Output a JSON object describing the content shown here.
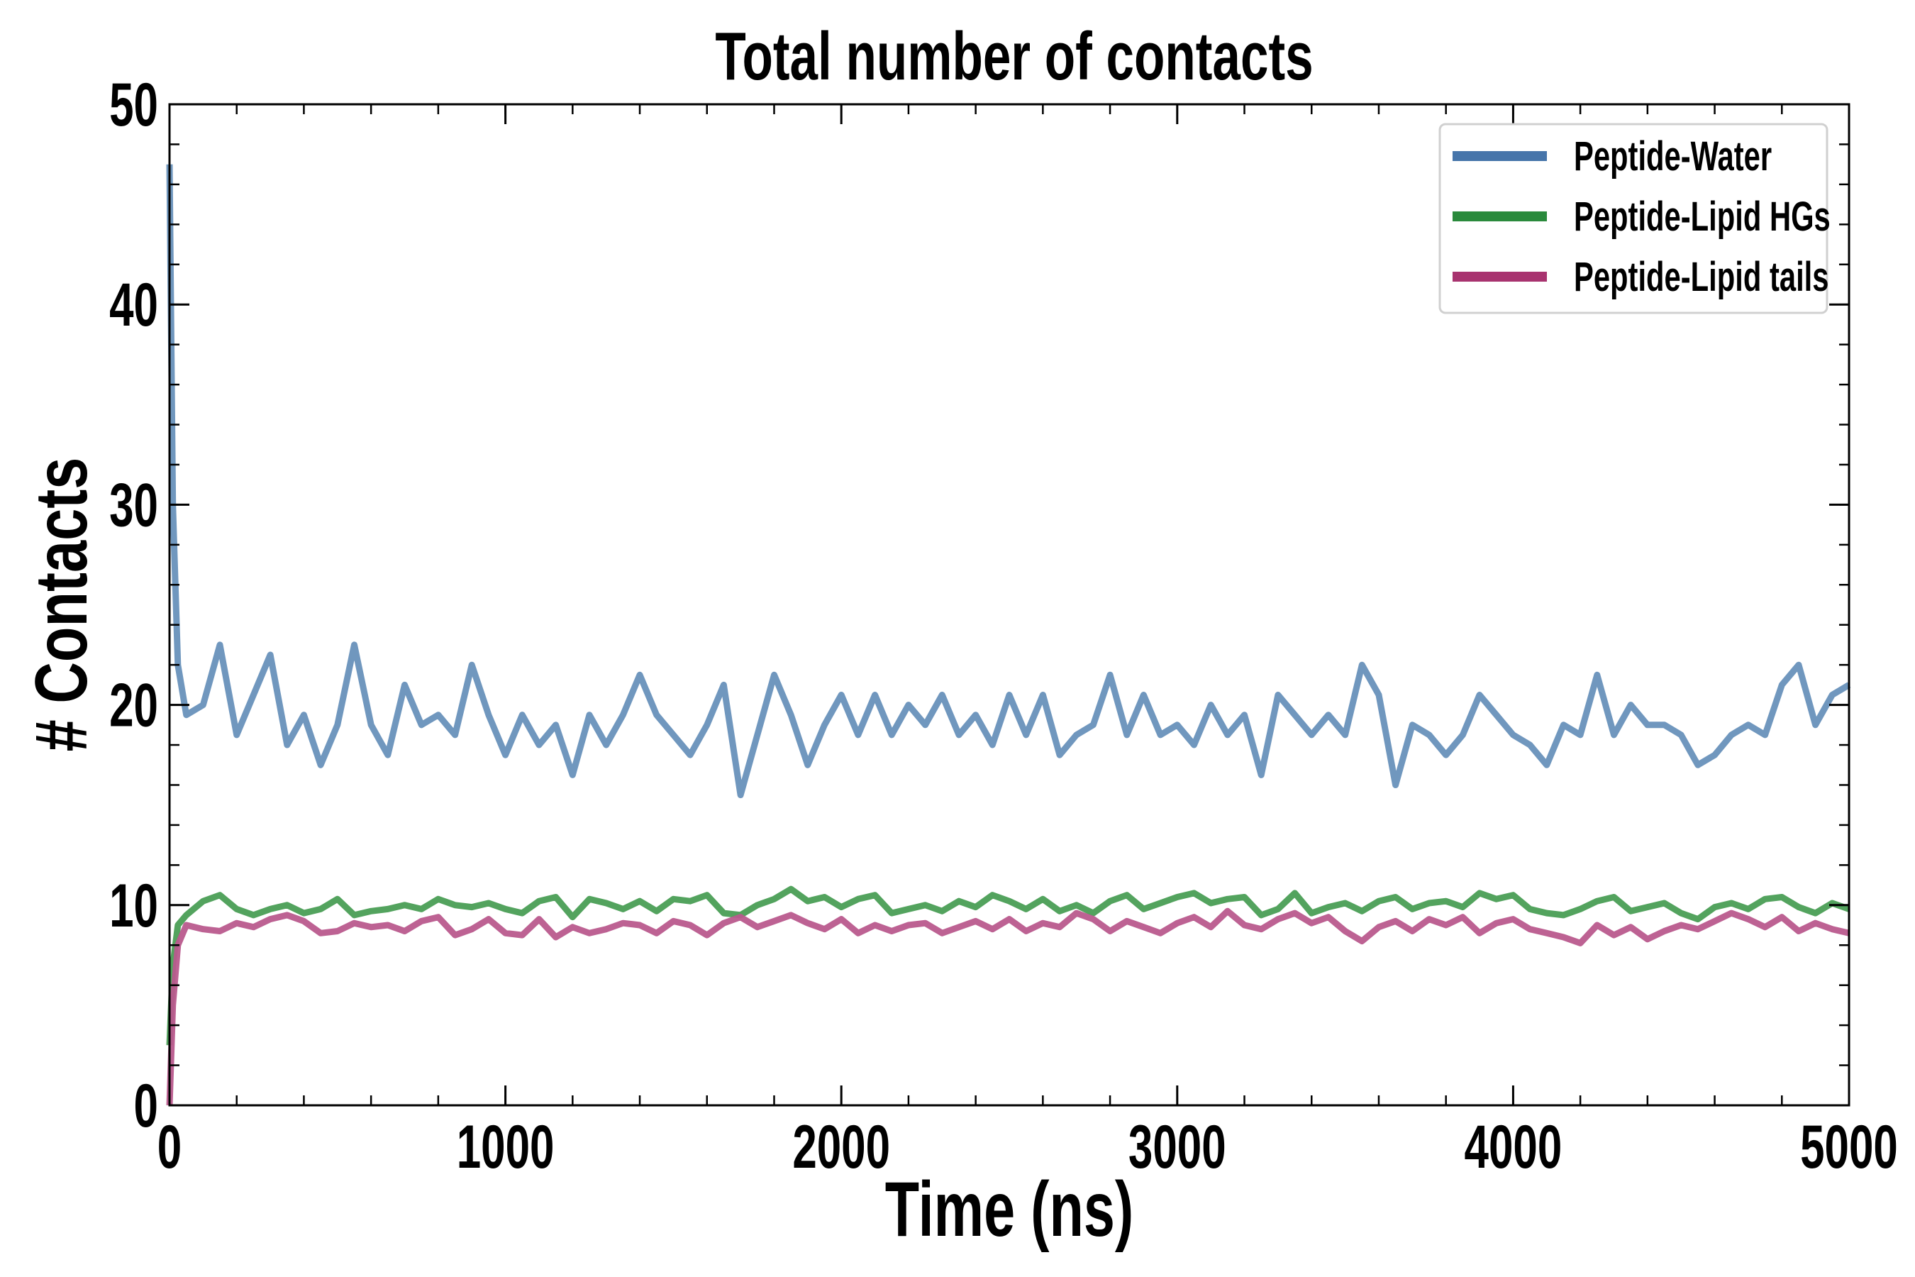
{
  "chart_data": {
    "type": "line",
    "title": "Total number of contacts",
    "xlabel": "Time (ns)",
    "ylabel": "# Contacts",
    "xlim": [
      0,
      5000
    ],
    "ylim": [
      0,
      50
    ],
    "xticks": [
      0,
      1000,
      2000,
      3000,
      4000,
      5000
    ],
    "xtick_labels": [
      "0",
      "1000",
      "2000",
      "3000",
      "4000",
      "5000"
    ],
    "yticks": [
      0,
      10,
      20,
      30,
      40,
      50
    ],
    "ytick_labels": [
      "0",
      "10",
      "20",
      "30",
      "40",
      "50"
    ],
    "x_minor_step": 200,
    "y_minor_step": 2,
    "grid": false,
    "legend_position": "top-right",
    "x": [
      0,
      10,
      25,
      50,
      100,
      150,
      200,
      250,
      300,
      350,
      400,
      450,
      500,
      550,
      600,
      650,
      700,
      750,
      800,
      850,
      900,
      950,
      1000,
      1050,
      1100,
      1150,
      1200,
      1250,
      1300,
      1350,
      1400,
      1450,
      1500,
      1550,
      1600,
      1650,
      1700,
      1750,
      1800,
      1850,
      1900,
      1950,
      2000,
      2050,
      2100,
      2150,
      2200,
      2250,
      2300,
      2350,
      2400,
      2450,
      2500,
      2550,
      2600,
      2650,
      2700,
      2750,
      2800,
      2850,
      2900,
      2950,
      3000,
      3050,
      3100,
      3150,
      3200,
      3250,
      3300,
      3350,
      3400,
      3450,
      3500,
      3550,
      3600,
      3650,
      3700,
      3750,
      3800,
      3850,
      3900,
      3950,
      4000,
      4050,
      4100,
      4150,
      4200,
      4250,
      4300,
      4350,
      4400,
      4450,
      4500,
      4550,
      4600,
      4650,
      4700,
      4750,
      4800,
      4850,
      4900,
      4950,
      5000
    ],
    "series": [
      {
        "name": "Peptide-Water",
        "color": "#6891bb",
        "legend_color": "#4675aa",
        "values": [
          47,
          30,
          22,
          19.5,
          20,
          23,
          18.5,
          20.5,
          22.5,
          18,
          19.5,
          17,
          19,
          23,
          19,
          17.5,
          21,
          19,
          19.5,
          18.5,
          22,
          19.5,
          17.5,
          19.5,
          18,
          19,
          16.5,
          19.5,
          18,
          19.5,
          21.5,
          19.5,
          18.5,
          17.5,
          19,
          21,
          15.5,
          18.5,
          21.5,
          19.5,
          17,
          19,
          20.5,
          18.5,
          20.5,
          18.5,
          20,
          19,
          20.5,
          18.5,
          19.5,
          18,
          20.5,
          18.5,
          20.5,
          17.5,
          18.5,
          19,
          21.5,
          18.5,
          20.5,
          18.5,
          19,
          18,
          20,
          18.5,
          19.5,
          16.5,
          20.5,
          19.5,
          18.5,
          19.5,
          18.5,
          22,
          20.5,
          16,
          19,
          18.5,
          17.5,
          18.5,
          20.5,
          19.5,
          18.5,
          18,
          17,
          19,
          18.5,
          21.5,
          18.5,
          20,
          19,
          19,
          18.5,
          17,
          17.5,
          18.5,
          19,
          18.5,
          21,
          22,
          19,
          20.5,
          21
        ]
      },
      {
        "name": "Peptide-Lipid HGs",
        "color": "#4a9e55",
        "legend_color": "#2a8a3c",
        "values": [
          3,
          7,
          9,
          9.5,
          10.2,
          10.5,
          9.8,
          9.5,
          9.8,
          10,
          9.6,
          9.8,
          10.3,
          9.5,
          9.7,
          9.8,
          10,
          9.8,
          10.3,
          10,
          9.9,
          10.1,
          9.8,
          9.6,
          10.2,
          10.4,
          9.4,
          10.3,
          10.1,
          9.8,
          10.2,
          9.7,
          10.3,
          10.2,
          10.5,
          9.6,
          9.5,
          10,
          10.3,
          10.8,
          10.2,
          10.4,
          9.9,
          10.3,
          10.5,
          9.6,
          9.8,
          10,
          9.7,
          10.2,
          9.9,
          10.5,
          10.2,
          9.8,
          10.3,
          9.7,
          10,
          9.6,
          10.2,
          10.5,
          9.8,
          10.1,
          10.4,
          10.6,
          10.1,
          10.3,
          10.4,
          9.5,
          9.8,
          10.6,
          9.6,
          9.9,
          10.1,
          9.7,
          10.2,
          10.4,
          9.8,
          10.1,
          10.2,
          9.9,
          10.6,
          10.3,
          10.5,
          9.8,
          9.6,
          9.5,
          9.8,
          10.2,
          10.4,
          9.7,
          9.9,
          10.1,
          9.6,
          9.3,
          9.9,
          10.1,
          9.8,
          10.3,
          10.4,
          9.9,
          9.6,
          10.1,
          9.8
        ]
      },
      {
        "name": "Peptide-Lipid tails",
        "color": "#b95a8d",
        "legend_color": "#a8336f",
        "values": [
          0,
          5,
          8,
          9,
          8.8,
          8.7,
          9.1,
          8.9,
          9.3,
          9.5,
          9.2,
          8.6,
          8.7,
          9.1,
          8.9,
          9,
          8.7,
          9.2,
          9.4,
          8.5,
          8.8,
          9.3,
          8.6,
          8.5,
          9.3,
          8.4,
          8.9,
          8.6,
          8.8,
          9.1,
          9,
          8.6,
          9.2,
          9,
          8.5,
          9.1,
          9.4,
          8.9,
          9.2,
          9.5,
          9.1,
          8.8,
          9.3,
          8.6,
          9,
          8.7,
          9,
          9.1,
          8.6,
          8.9,
          9.2,
          8.8,
          9.3,
          8.7,
          9.1,
          8.9,
          9.6,
          9.3,
          8.7,
          9.2,
          8.9,
          8.6,
          9.1,
          9.4,
          8.9,
          9.7,
          9,
          8.8,
          9.3,
          9.6,
          9.1,
          9.4,
          8.7,
          8.2,
          8.9,
          9.2,
          8.7,
          9.3,
          9,
          9.4,
          8.6,
          9.1,
          9.3,
          8.8,
          8.6,
          8.4,
          8.1,
          9,
          8.5,
          8.9,
          8.3,
          8.7,
          9,
          8.8,
          9.2,
          9.6,
          9.3,
          8.9,
          9.4,
          8.7,
          9.1,
          8.8,
          8.6
        ]
      }
    ]
  }
}
